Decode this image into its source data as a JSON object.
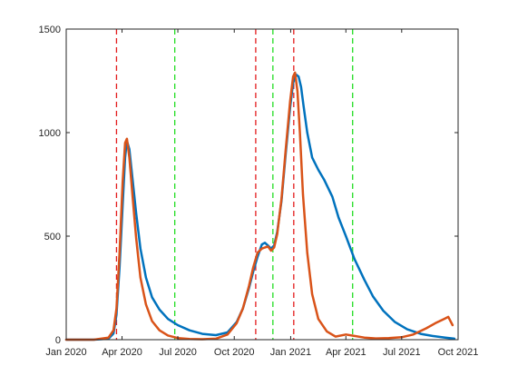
{
  "chart_data": {
    "type": "line",
    "title": "",
    "xlabel": "",
    "ylabel": "",
    "xlim": [
      "2020-01-01",
      "2021-10-01"
    ],
    "ylim": [
      0,
      1500
    ],
    "grid": false,
    "legend": "none",
    "x_ticks": [
      "Jan 2020",
      "Apr 2020",
      "Jul 2020",
      "Oct 2020",
      "Jan 2021",
      "Apr 2021",
      "Jul 2021",
      "Oct 2021"
    ],
    "x_tick_dates": [
      "2020-01-01",
      "2020-04-01",
      "2020-07-01",
      "2020-10-01",
      "2021-01-01",
      "2021-04-01",
      "2021-07-01",
      "2021-10-01"
    ],
    "y_ticks": [
      0,
      500,
      1000,
      1500
    ],
    "y_tick_labels": [
      "0",
      "500",
      "1000",
      "1500"
    ],
    "vertical_lines": [
      {
        "date": "2020-03-23",
        "color": "#e31a1c",
        "style": "dashed"
      },
      {
        "date": "2020-06-26",
        "color": "#22dd22",
        "style": "dashed"
      },
      {
        "date": "2020-11-05",
        "color": "#e31a1c",
        "style": "dashed"
      },
      {
        "date": "2020-12-03",
        "color": "#22dd22",
        "style": "dashed"
      },
      {
        "date": "2021-01-06",
        "color": "#e31a1c",
        "style": "dashed"
      },
      {
        "date": "2021-04-12",
        "color": "#22dd22",
        "style": "dashed"
      }
    ],
    "series": [
      {
        "color": "#0072BD",
        "x": [
          "2020-01-01",
          "2020-02-15",
          "2020-03-10",
          "2020-03-18",
          "2020-03-23",
          "2020-03-28",
          "2020-04-02",
          "2020-04-06",
          "2020-04-09",
          "2020-04-13",
          "2020-04-18",
          "2020-04-24",
          "2020-05-01",
          "2020-05-10",
          "2020-05-20",
          "2020-06-01",
          "2020-06-15",
          "2020-07-01",
          "2020-07-20",
          "2020-08-10",
          "2020-09-01",
          "2020-09-20",
          "2020-10-05",
          "2020-10-15",
          "2020-10-25",
          "2020-11-01",
          "2020-11-08",
          "2020-11-15",
          "2020-11-20",
          "2020-11-25",
          "2020-11-30",
          "2020-12-05",
          "2020-12-10",
          "2020-12-17",
          "2020-12-24",
          "2020-12-31",
          "2021-01-05",
          "2021-01-10",
          "2021-01-14",
          "2021-01-18",
          "2021-01-22",
          "2021-01-28",
          "2021-02-05",
          "2021-02-15",
          "2021-02-25",
          "2021-03-10",
          "2021-03-20",
          "2021-04-01",
          "2021-04-15",
          "2021-05-01",
          "2021-05-15",
          "2021-06-01",
          "2021-06-20",
          "2021-07-10",
          "2021-08-01",
          "2021-08-20",
          "2021-09-10",
          "2021-09-25"
        ],
        "y": [
          0,
          0,
          5,
          30,
          120,
          350,
          650,
          880,
          960,
          920,
          780,
          610,
          440,
          300,
          205,
          145,
          100,
          70,
          45,
          28,
          22,
          35,
          85,
          150,
          250,
          330,
          400,
          460,
          468,
          455,
          440,
          455,
          520,
          670,
          900,
          1120,
          1240,
          1280,
          1270,
          1220,
          1130,
          1000,
          880,
          820,
          770,
          690,
          590,
          500,
          390,
          290,
          210,
          140,
          85,
          50,
          28,
          18,
          10,
          5
        ]
      },
      {
        "color": "#D95319",
        "x": [
          "2020-01-01",
          "2020-02-15",
          "2020-03-10",
          "2020-03-18",
          "2020-03-23",
          "2020-03-28",
          "2020-04-02",
          "2020-04-06",
          "2020-04-09",
          "2020-04-13",
          "2020-04-18",
          "2020-04-24",
          "2020-05-01",
          "2020-05-10",
          "2020-05-20",
          "2020-06-01",
          "2020-06-15",
          "2020-07-01",
          "2020-07-20",
          "2020-08-10",
          "2020-09-01",
          "2020-09-20",
          "2020-10-05",
          "2020-10-15",
          "2020-10-25",
          "2020-11-01",
          "2020-11-08",
          "2020-11-15",
          "2020-11-20",
          "2020-11-25",
          "2020-11-30",
          "2020-12-05",
          "2020-12-10",
          "2020-12-17",
          "2020-12-24",
          "2020-12-31",
          "2021-01-05",
          "2021-01-08",
          "2021-01-12",
          "2021-01-16",
          "2021-01-21",
          "2021-01-28",
          "2021-02-05",
          "2021-02-15",
          "2021-03-01",
          "2021-03-15",
          "2021-04-01",
          "2021-04-15",
          "2021-05-01",
          "2021-05-20",
          "2021-06-10",
          "2021-07-01",
          "2021-07-20",
          "2021-08-10",
          "2021-08-25",
          "2021-09-08",
          "2021-09-15",
          "2021-09-22"
        ],
        "y": [
          0,
          0,
          10,
          45,
          150,
          420,
          760,
          950,
          970,
          880,
          700,
          490,
          300,
          170,
          90,
          45,
          20,
          8,
          3,
          2,
          5,
          25,
          80,
          150,
          260,
          350,
          420,
          440,
          445,
          450,
          430,
          445,
          510,
          680,
          920,
          1150,
          1270,
          1290,
          1200,
          1000,
          700,
          420,
          220,
          100,
          40,
          15,
          25,
          18,
          10,
          6,
          8,
          12,
          25,
          55,
          80,
          100,
          110,
          70
        ]
      }
    ]
  }
}
